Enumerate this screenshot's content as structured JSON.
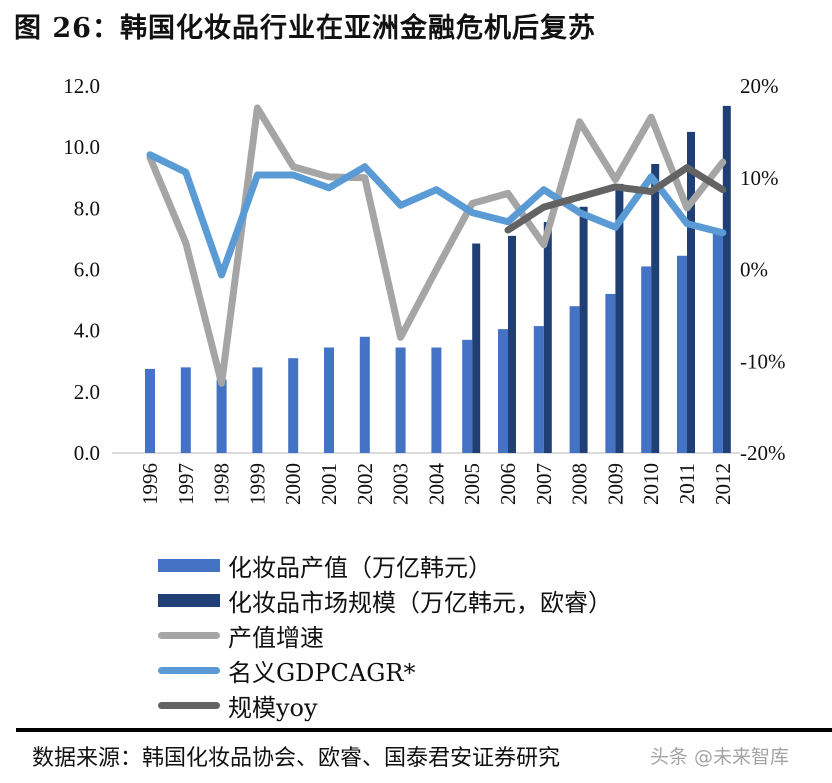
{
  "title": "图 26：韩国化妆品行业在亚洲金融危机后复苏",
  "chart_data": {
    "type": "bar+line",
    "categories": [
      "1996",
      "1997",
      "1998",
      "1999",
      "2000",
      "2001",
      "2002",
      "2003",
      "2004",
      "2005",
      "2006",
      "2007",
      "2008",
      "2009",
      "2010",
      "2011",
      "2012"
    ],
    "y_left": {
      "range": [
        0,
        12
      ],
      "ticks": [
        "0.0",
        "2.0",
        "4.0",
        "6.0",
        "8.0",
        "10.0",
        "12.0"
      ]
    },
    "y_right": {
      "range": [
        -20,
        20
      ],
      "ticks": [
        "-20%",
        "-10%",
        "0%",
        "10%",
        "20%"
      ]
    },
    "grid": false,
    "legend_placement": "bottom",
    "series": [
      {
        "name": "化妆品产值（万亿韩元）",
        "kind": "bar",
        "axis": "left",
        "color": "#4472C4",
        "values": [
          2.75,
          2.8,
          2.4,
          2.8,
          3.1,
          3.45,
          3.8,
          3.45,
          3.45,
          3.7,
          4.05,
          4.15,
          4.8,
          5.2,
          6.1,
          6.45,
          7.2
        ]
      },
      {
        "name": "化妆品市场规模（万亿韩元，欧睿）",
        "kind": "bar",
        "axis": "left",
        "color": "#203F75",
        "values": [
          null,
          null,
          null,
          null,
          null,
          null,
          null,
          null,
          null,
          6.85,
          7.1,
          7.55,
          8.05,
          8.8,
          9.45,
          10.5,
          11.35
        ]
      },
      {
        "name": "产值增速",
        "kind": "line",
        "axis": "right",
        "color": "#A5A5A5",
        "values": [
          12.2,
          2.9,
          -12.4,
          17.6,
          11.2,
          10.1,
          10.0,
          -7.4,
          0.0,
          7.2,
          8.3,
          2.7,
          16.1,
          9.8,
          16.6,
          6.7,
          11.7
        ]
      },
      {
        "name": "名义GDPCAGR*",
        "kind": "line",
        "axis": "right",
        "color": "#5B9BD5",
        "values": [
          12.5,
          10.6,
          -0.6,
          10.3,
          10.3,
          8.9,
          11.2,
          7.0,
          8.7,
          6.2,
          5.2,
          8.7,
          6.2,
          4.6,
          10.1,
          5.0,
          4.0
        ]
      },
      {
        "name": "规模yoy",
        "kind": "line",
        "axis": "right",
        "color": "#636363",
        "values": [
          null,
          null,
          null,
          null,
          null,
          null,
          null,
          null,
          null,
          null,
          4.3,
          6.8,
          7.9,
          9.0,
          8.5,
          11.1,
          8.7
        ]
      }
    ]
  },
  "source": "数据来源：韩国化妆品协会、欧睿、国泰君安证券研究",
  "watermark": "头条 @未来智库"
}
